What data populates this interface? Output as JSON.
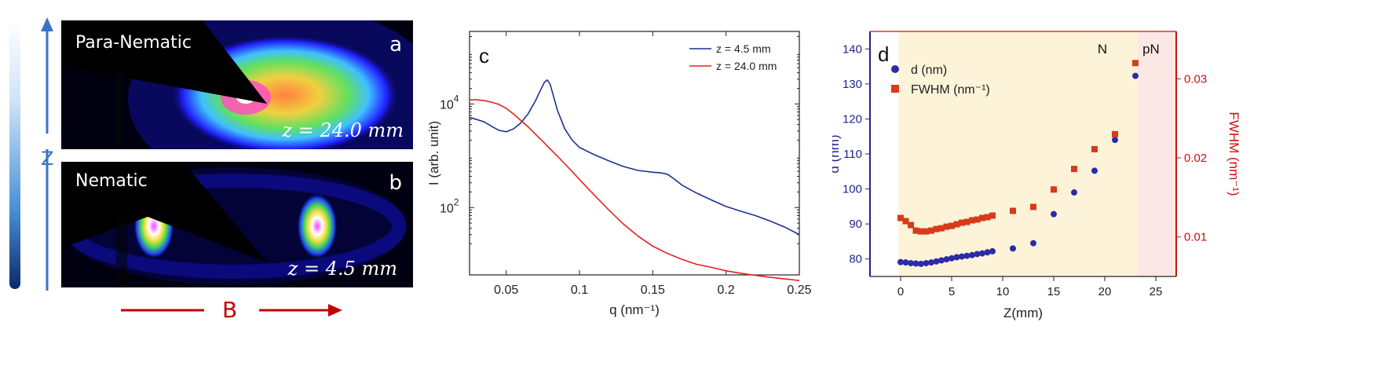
{
  "left_figure": {
    "axis_z_label": "Z",
    "axis_b_label": "B",
    "panel_a": {
      "letter": "a",
      "phase": "Para-Nematic",
      "z_text": "z = 24.0 mm"
    },
    "panel_b": {
      "letter": "b",
      "phase": "Nematic",
      "z_text": "z = 4.5 mm"
    },
    "colors": {
      "z_arrow": "#3b73c4",
      "b_arrow": "#c00000"
    }
  },
  "chart_data": [
    {
      "type": "line",
      "panel_letter": "c",
      "xlabel": "q (nm⁻¹)",
      "ylabel": "I (arb. unit)",
      "xlim": [
        0.025,
        0.25
      ],
      "ylim_log10": [
        0.7,
        5.4
      ],
      "yscale": "log",
      "xticks": [
        "0.05",
        "0.1",
        "0.15",
        "0.2",
        "0.25"
      ],
      "yticks": [
        {
          "base": "10",
          "exp": "4"
        },
        {
          "base": "10",
          "exp": "2"
        }
      ],
      "legend_position": "top-right",
      "series": [
        {
          "name": "z = 4.5 mm",
          "color": "#1f2f8f",
          "x": [
            0.025,
            0.03,
            0.035,
            0.04,
            0.045,
            0.05,
            0.055,
            0.06,
            0.065,
            0.07,
            0.073,
            0.076,
            0.078,
            0.08,
            0.082,
            0.085,
            0.09,
            0.095,
            0.1,
            0.11,
            0.12,
            0.13,
            0.14,
            0.15,
            0.155,
            0.16,
            0.165,
            0.17,
            0.18,
            0.19,
            0.2,
            0.21,
            0.22,
            0.23,
            0.24,
            0.25
          ],
          "y": [
            5500,
            5000,
            4500,
            3700,
            3100,
            2900,
            3300,
            4300,
            6500,
            11500,
            17500,
            26000,
            29000,
            24000,
            15000,
            7500,
            3300,
            2000,
            1450,
            1050,
            800,
            620,
            520,
            480,
            470,
            440,
            350,
            270,
            190,
            140,
            105,
            85,
            70,
            55,
            42,
            30
          ]
        },
        {
          "name": "z = 24.0 mm",
          "color": "#e82020",
          "x": [
            0.025,
            0.03,
            0.035,
            0.04,
            0.045,
            0.05,
            0.055,
            0.06,
            0.065,
            0.07,
            0.075,
            0.08,
            0.085,
            0.09,
            0.1,
            0.11,
            0.12,
            0.13,
            0.14,
            0.15,
            0.16,
            0.17,
            0.18,
            0.19,
            0.2,
            0.21,
            0.22,
            0.23,
            0.24,
            0.25
          ],
          "y": [
            12000,
            12000,
            11600,
            10800,
            9800,
            8200,
            6400,
            4800,
            3600,
            2600,
            1900,
            1350,
            980,
            700,
            350,
            175,
            90,
            48,
            28,
            18,
            13,
            10,
            8,
            7,
            6,
            5.4,
            4.9,
            4.5,
            4.2,
            3.9
          ]
        }
      ]
    },
    {
      "type": "scatter",
      "panel_letter": "d",
      "xlabel": "Z(mm)",
      "ylabel_left": "d (nm)",
      "ylabel_right": "FWHM (nm⁻¹)",
      "xlim": [
        -3,
        27
      ],
      "ylim_left": [
        75,
        145
      ],
      "ylim_right": [
        0.005,
        0.036
      ],
      "xticks": [
        "0",
        "5",
        "10",
        "15",
        "20",
        "25"
      ],
      "yticks_left": [
        "80",
        "90",
        "100",
        "110",
        "120",
        "130",
        "140"
      ],
      "yticks_right": [
        "0.01",
        "0.02",
        "0.03"
      ],
      "region_labels": {
        "nematic": "N",
        "para_nematic": "pN"
      },
      "region_boundaries": [
        -0.2,
        23.2,
        27
      ],
      "region_colors": {
        "nematic": "#fdf3d9",
        "para_nematic": "#fbe8e4"
      },
      "left_axis_color": "#22228f",
      "right_axis_color": "#cc1111",
      "legend_position": "top-left",
      "series": [
        {
          "name": "d (nm)",
          "marker": "circle",
          "color": "#2b2ba8",
          "x": [
            0,
            0.5,
            1,
            1.5,
            2,
            2.5,
            3,
            3.5,
            4,
            4.5,
            5,
            5.5,
            6,
            6.5,
            7,
            7.5,
            8,
            8.5,
            9,
            11,
            13,
            15,
            17,
            19,
            21,
            23
          ],
          "y": [
            79.1,
            79.0,
            78.8,
            78.7,
            78.6,
            78.8,
            79.0,
            79.3,
            79.6,
            79.9,
            80.2,
            80.5,
            80.7,
            80.9,
            81.1,
            81.4,
            81.6,
            81.9,
            82.2,
            83.0,
            84.5,
            92.8,
            99.0,
            105.2,
            114.0,
            132.3
          ]
        },
        {
          "name": "FWHM (nm⁻¹)",
          "marker": "square",
          "color": "#d83a1a",
          "x": [
            0,
            0.5,
            1,
            1.5,
            2,
            2.5,
            3,
            3.5,
            4,
            4.5,
            5,
            5.5,
            6,
            6.5,
            7,
            7.5,
            8,
            8.5,
            9,
            11,
            13,
            15,
            17,
            19,
            21,
            23
          ],
          "y": [
            0.0124,
            0.012,
            0.0115,
            0.0108,
            0.0107,
            0.0107,
            0.0108,
            0.011,
            0.0111,
            0.0113,
            0.0114,
            0.0116,
            0.0118,
            0.0119,
            0.0121,
            0.0122,
            0.0124,
            0.0125,
            0.0127,
            0.0133,
            0.0138,
            0.016,
            0.0186,
            0.0211,
            0.023,
            0.032
          ]
        }
      ]
    }
  ]
}
